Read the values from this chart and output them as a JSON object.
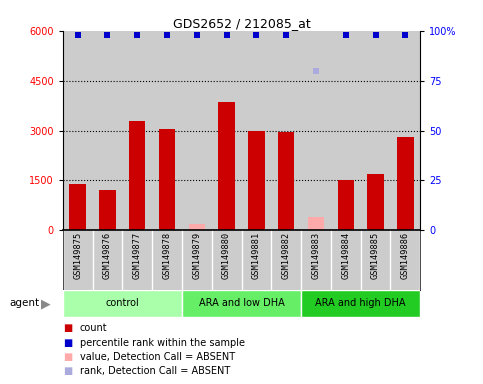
{
  "title": "GDS2652 / 212085_at",
  "samples": [
    "GSM149875",
    "GSM149876",
    "GSM149877",
    "GSM149878",
    "GSM149879",
    "GSM149880",
    "GSM149881",
    "GSM149882",
    "GSM149883",
    "GSM149884",
    "GSM149885",
    "GSM149886"
  ],
  "counts": [
    1400,
    1200,
    3300,
    3050,
    null,
    3850,
    3000,
    2950,
    null,
    1500,
    1700,
    2800
  ],
  "absent_values": [
    null,
    null,
    null,
    null,
    200,
    null,
    null,
    null,
    400,
    null,
    null,
    null
  ],
  "percentile_ranks": [
    98,
    98,
    98,
    98,
    98,
    98,
    98,
    98,
    null,
    98,
    98,
    98
  ],
  "absent_ranks": [
    null,
    null,
    null,
    null,
    null,
    null,
    null,
    null,
    80,
    null,
    null,
    null
  ],
  "groups": [
    {
      "label": "control",
      "start": 0,
      "end": 3,
      "color": "#aaffaa"
    },
    {
      "label": "ARA and low DHA",
      "start": 4,
      "end": 7,
      "color": "#66ee66"
    },
    {
      "label": "ARA and high DHA",
      "start": 8,
      "end": 11,
      "color": "#22cc22"
    }
  ],
  "ylim_left": [
    0,
    6000
  ],
  "ylim_right": [
    0,
    100
  ],
  "yticks_left": [
    0,
    1500,
    3000,
    4500,
    6000
  ],
  "yticks_right": [
    0,
    25,
    50,
    75,
    100
  ],
  "bar_color": "#cc0000",
  "absent_bar_color": "#ffaaaa",
  "rank_color": "#0000cc",
  "absent_rank_color": "#aaaadd",
  "plot_bg_color": "#cccccc",
  "xtick_bg_color": "#cccccc",
  "legend": [
    {
      "label": "count",
      "color": "#cc0000"
    },
    {
      "label": "percentile rank within the sample",
      "color": "#0000cc"
    },
    {
      "label": "value, Detection Call = ABSENT",
      "color": "#ffaaaa"
    },
    {
      "label": "rank, Detection Call = ABSENT",
      "color": "#aaaadd"
    }
  ]
}
